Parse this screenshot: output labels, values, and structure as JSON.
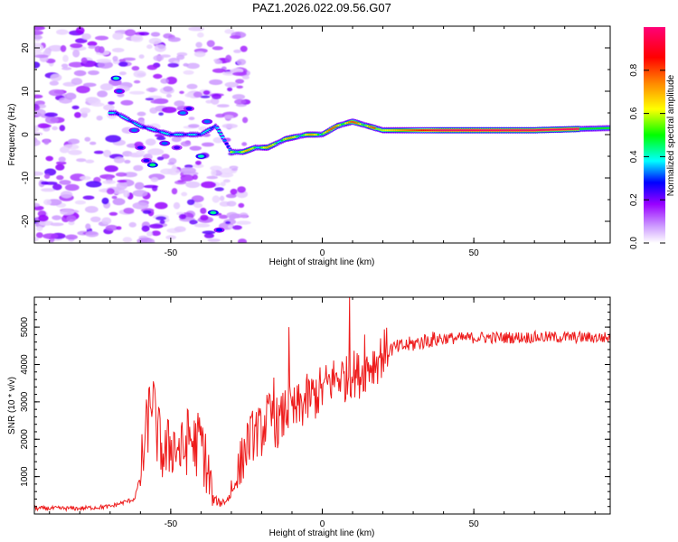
{
  "title": "PAZ1.2026.022.09.56.G07",
  "chart_data": [
    {
      "type": "heatmap",
      "xlabel": "Height of straight line (km)",
      "ylabel": "Frequency (Hz)",
      "xlim": [
        -95,
        95
      ],
      "ylim": [
        -25,
        25
      ],
      "xticks": [
        -50,
        0,
        50
      ],
      "yticks": [
        -20,
        -10,
        0,
        10,
        20
      ],
      "colorbar": {
        "label": "Normalized spectral amplitude",
        "range": [
          0,
          1
        ],
        "ticks": [
          "0.0",
          "0.2",
          "0.4",
          "0.6",
          "0.8"
        ],
        "stops": [
          "#ffffff",
          "#cc99ff",
          "#9900ff",
          "#0000ff",
          "#00ffff",
          "#00ff00",
          "#ffff00",
          "#ff8800",
          "#ff0000",
          "#ff0077"
        ]
      },
      "ridge": {
        "description": "frequency of spectral maximum vs height",
        "x": [
          -68,
          -60,
          -50,
          -40,
          -35,
          -30,
          -26,
          -22,
          -18,
          -12,
          -5,
          0,
          5,
          10,
          15,
          20,
          30,
          50,
          70,
          95
        ],
        "y": [
          5,
          2,
          0,
          0,
          2,
          -4,
          -4,
          -3,
          -3,
          -1,
          0,
          0,
          2,
          3,
          2,
          1,
          1,
          1,
          1,
          1.5
        ]
      }
    },
    {
      "type": "line",
      "xlabel": "Height of straight line (km)",
      "ylabel": "SNR (10 * v/v)",
      "xlim": [
        -95,
        95
      ],
      "ylim": [
        0,
        5800
      ],
      "xticks": [
        -50,
        0,
        50
      ],
      "yticks": [
        1000,
        2000,
        3000,
        4000,
        5000
      ],
      "color": "#ee1c1c",
      "series": [
        {
          "name": "SNR",
          "x": [
            -95,
            -80,
            -70,
            -62,
            -60,
            -58,
            -56,
            -55,
            -52,
            -50,
            -48,
            -46,
            -44,
            -42,
            -40,
            -38,
            -36,
            -34,
            -32,
            -30,
            -28,
            -26,
            -24,
            -22,
            -20,
            -18,
            -16,
            -14,
            -12,
            -10,
            -8,
            -6,
            -4,
            -2,
            0,
            2,
            4,
            6,
            8,
            10,
            12,
            14,
            16,
            18,
            20,
            22,
            25,
            30,
            35,
            40,
            45,
            50,
            60,
            70,
            80,
            90,
            95
          ],
          "y": [
            150,
            150,
            200,
            400,
            1000,
            2200,
            3300,
            2300,
            1500,
            1900,
            1800,
            1600,
            2100,
            1800,
            2000,
            1200,
            400,
            300,
            350,
            500,
            1000,
            1600,
            2000,
            2200,
            2200,
            2600,
            2500,
            2400,
            2800,
            2700,
            2800,
            3000,
            3100,
            3200,
            3300,
            3500,
            3600,
            3700,
            3600,
            3800,
            3700,
            3900,
            4000,
            4100,
            4300,
            4400,
            4450,
            4550,
            4650,
            4700,
            4700,
            4720,
            4720,
            4730,
            4730,
            4720,
            4720
          ],
          "peaks": [
            {
              "x": -57,
              "y": 3400
            },
            {
              "x": -30,
              "y": 900
            },
            {
              "x": -16,
              "y": 3650
            },
            {
              "x": -11,
              "y": 5000
            },
            {
              "x": 9,
              "y": 5800
            },
            {
              "x": 14,
              "y": 4800
            }
          ]
        }
      ]
    }
  ]
}
